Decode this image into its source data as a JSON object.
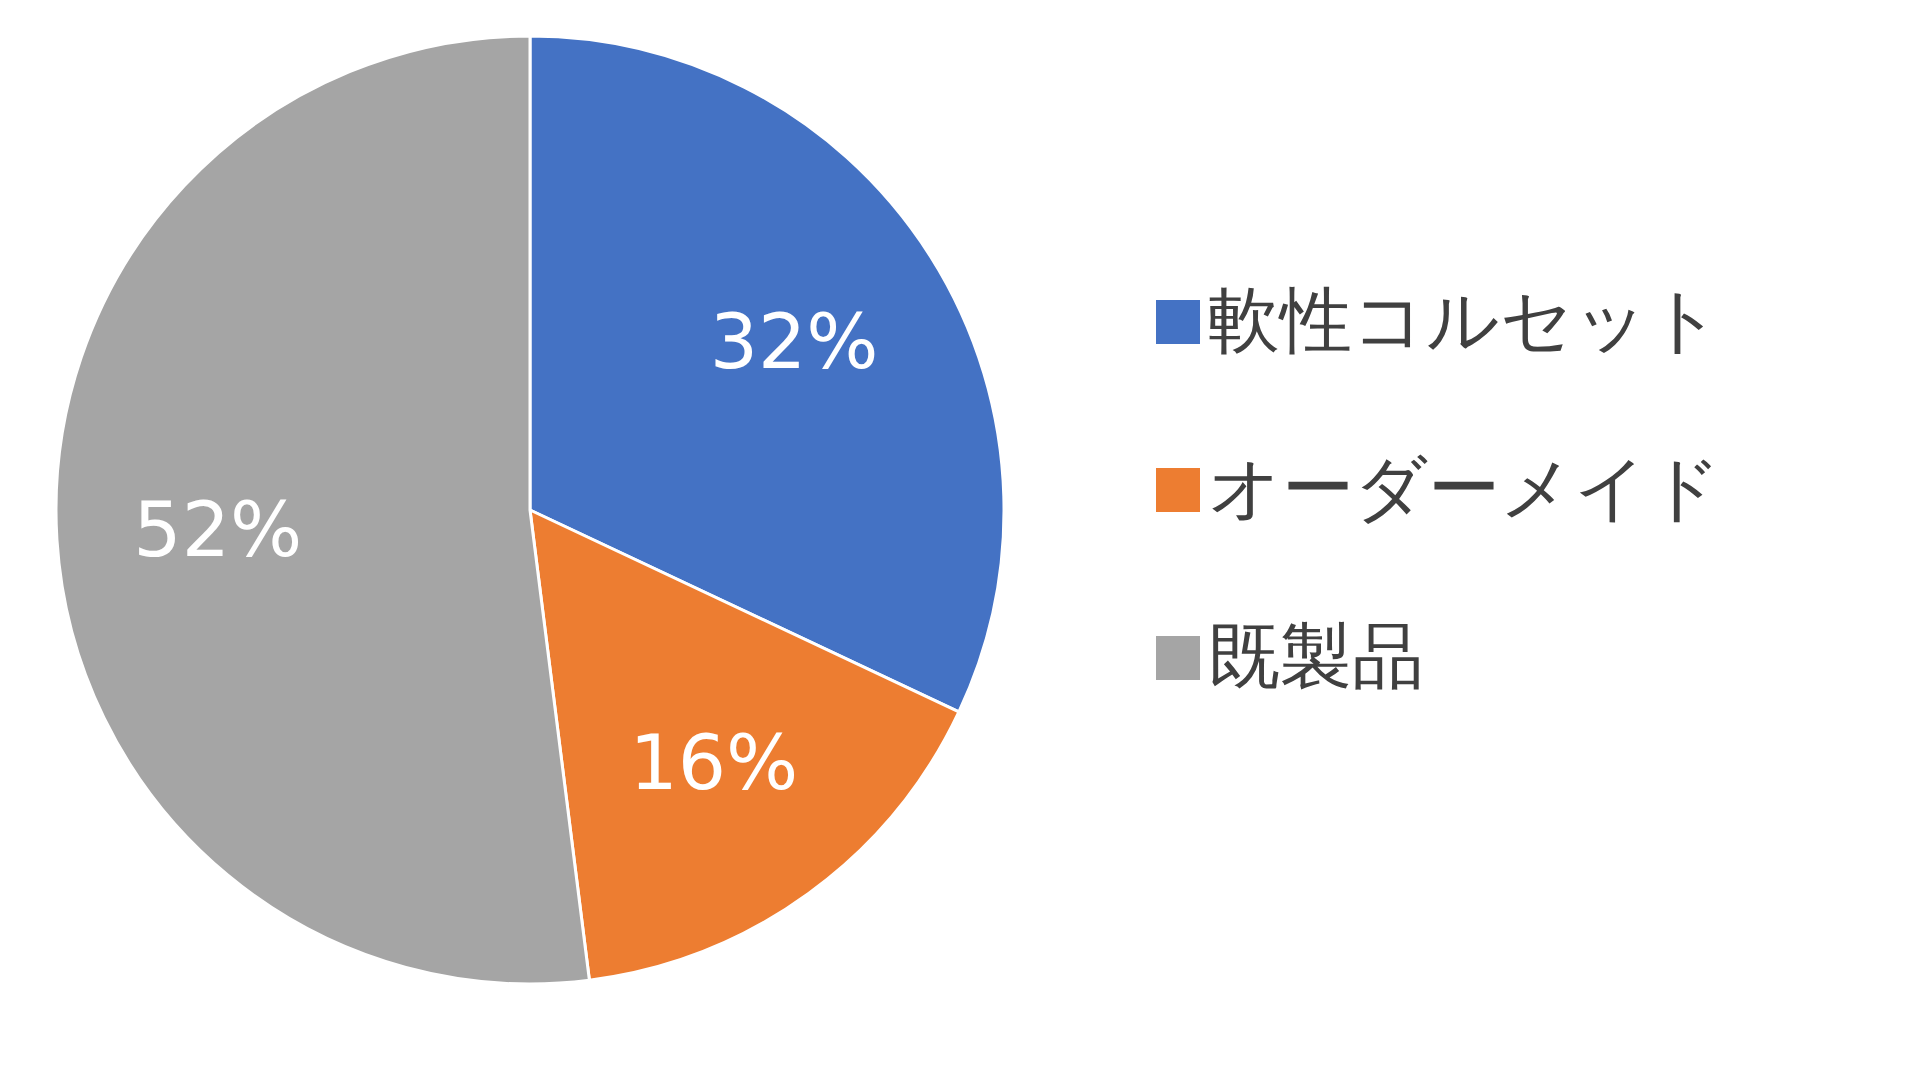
{
  "chart_data": {
    "type": "pie",
    "categories": [
      "軟性コルセット",
      "オーダーメイド",
      "既製品"
    ],
    "values": [
      32,
      16,
      52
    ],
    "colors": [
      "#4472c4",
      "#ed7d31",
      "#a5a5a5"
    ],
    "value_labels": [
      "32%",
      "16%",
      "52%"
    ],
    "legend": "right"
  }
}
